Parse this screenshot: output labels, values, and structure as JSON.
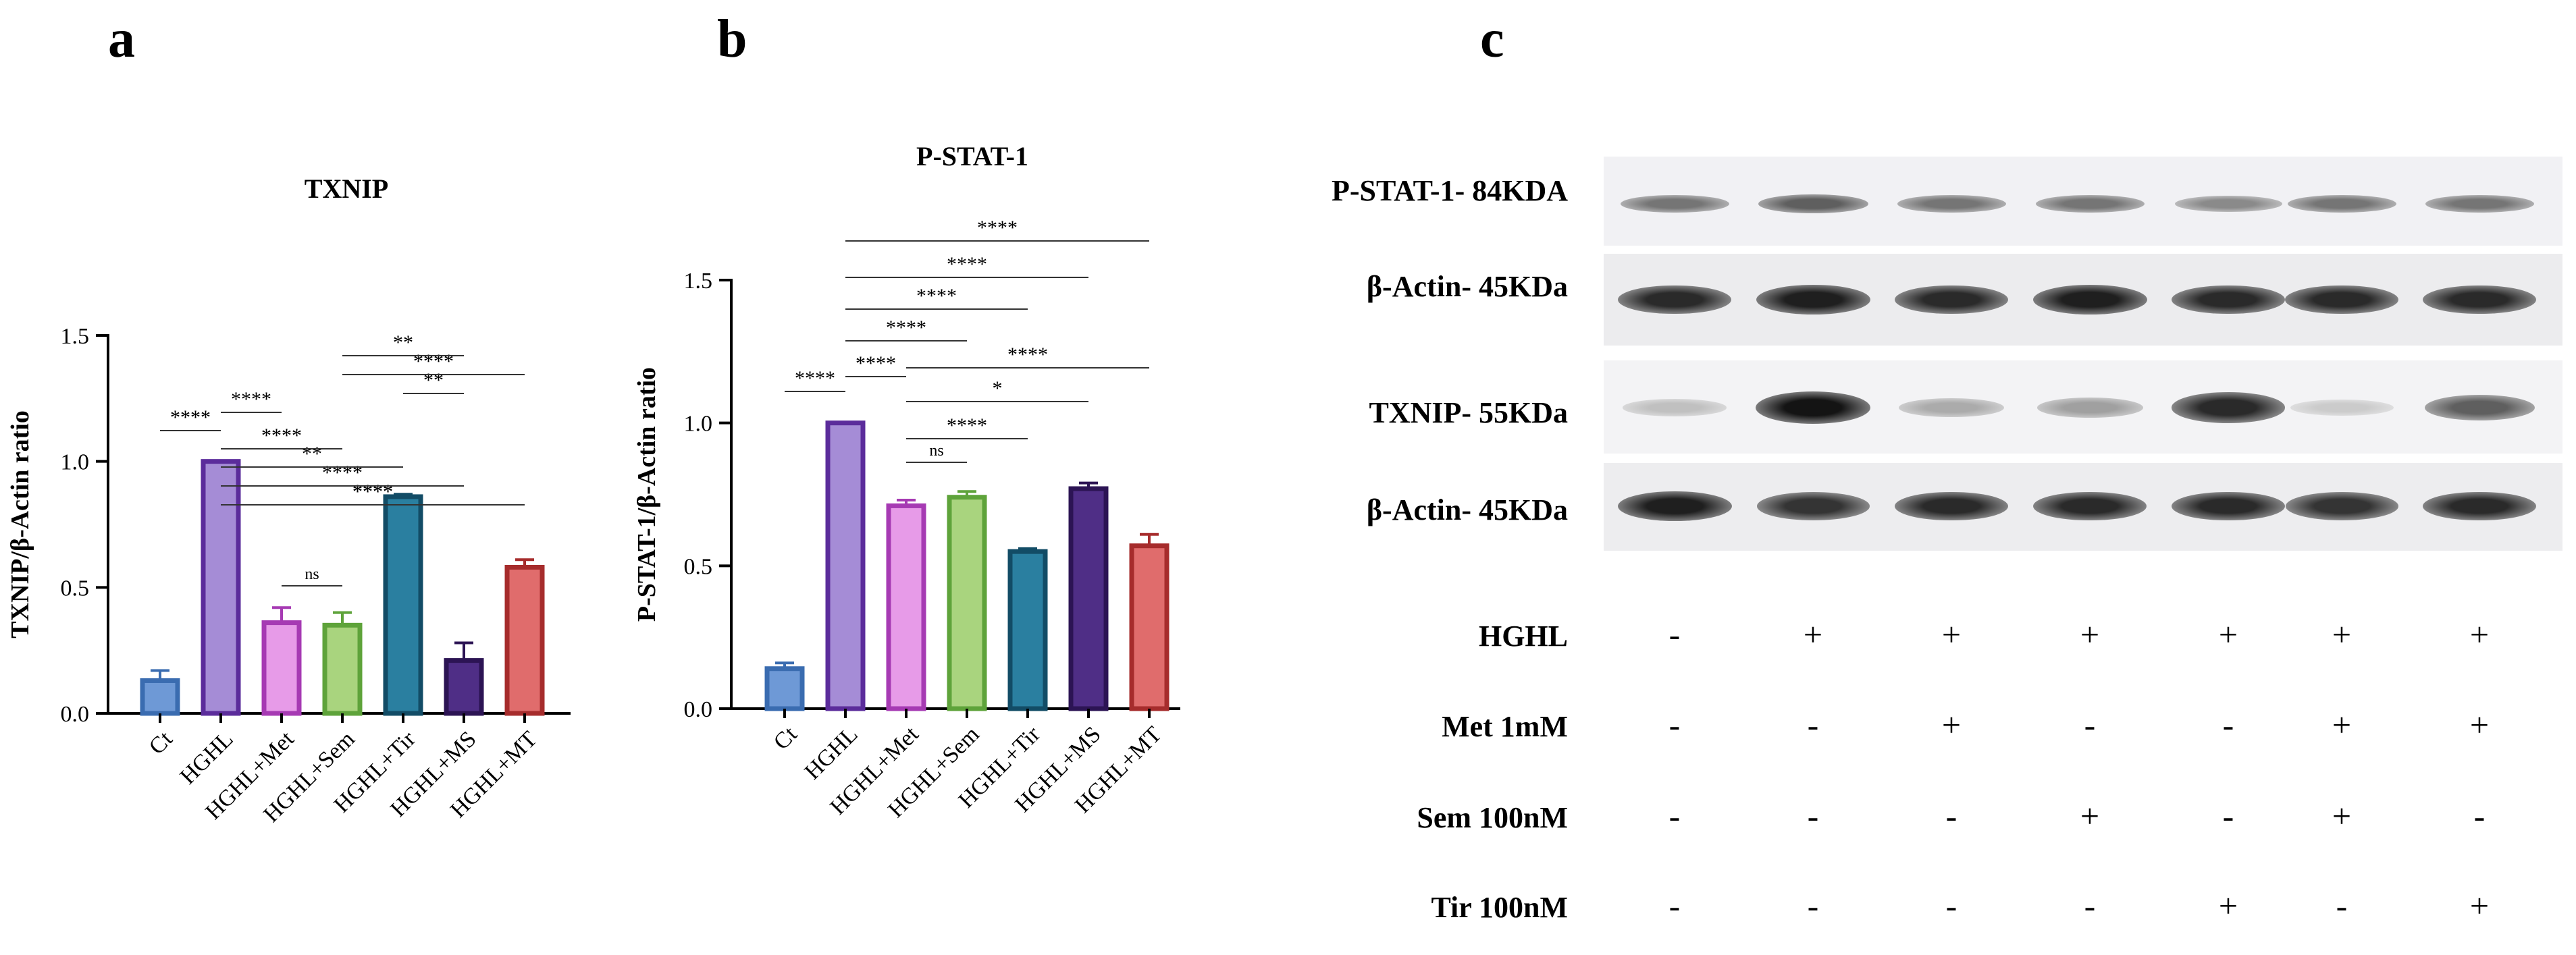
{
  "panels": {
    "a": {
      "letter": "a"
    },
    "b": {
      "letter": "b"
    },
    "c": {
      "letter": "c"
    }
  },
  "chart_data": [
    {
      "type": "bar",
      "title": "TXNIP",
      "ylabel": "TXNIP/β-Actin ratio",
      "xlabel": "",
      "ylim": [
        0,
        1.5
      ],
      "yticks": [
        "0.0",
        "0.5",
        "1.0",
        "1.5"
      ],
      "categories": [
        "Ct",
        "HGHL",
        "HGHL+Met",
        "HGHL+Sem",
        "HGHL+Tir",
        "HGHL+MS",
        "HGHL+MT"
      ],
      "values": [
        0.13,
        1.0,
        0.36,
        0.35,
        0.86,
        0.21,
        0.58
      ],
      "errors": [
        0.04,
        0.0,
        0.06,
        0.05,
        0.01,
        0.07,
        0.03
      ],
      "colors": [
        "#6e99d6",
        "#a58cd6",
        "#e79be8",
        "#a9d47e",
        "#2a7fa0",
        "#4f2e86",
        "#e06c6c"
      ],
      "edge_colors": [
        "#3a6cb0",
        "#5b2c9b",
        "#a63ab3",
        "#5ea33a",
        "#124c66",
        "#2c1454",
        "#a62c2c"
      ],
      "comparisons": [
        {
          "from": 0,
          "to": 1,
          "label": "****"
        },
        {
          "from": 2,
          "to": 3,
          "label": "ns"
        },
        {
          "from": 3,
          "to": 4,
          "label": "****"
        },
        {
          "from": 1,
          "to": 6,
          "label": "****"
        },
        {
          "from": 1,
          "to": 5,
          "label": "****"
        },
        {
          "from": 1,
          "to": 4,
          "label": "**"
        },
        {
          "from": 1,
          "to": 3,
          "label": "****"
        },
        {
          "from": 1,
          "to": 2,
          "label": "****"
        },
        {
          "from": 4,
          "to": 5,
          "label": "**"
        },
        {
          "from": 3,
          "to": 6,
          "label": "****"
        },
        {
          "from": 3,
          "to": 5,
          "label": "**"
        }
      ]
    },
    {
      "type": "bar",
      "title": "P-STAT-1",
      "ylabel": "P-STAT-1/β-Actin ratio",
      "xlabel": "",
      "ylim": [
        0,
        1.5
      ],
      "yticks": [
        "0.0",
        "0.5",
        "1.0",
        "1.5"
      ],
      "categories": [
        "Ct",
        "HGHL",
        "HGHL+Met",
        "HGHL+Sem",
        "HGHL+Tir",
        "HGHL+MS",
        "HGHL+MT"
      ],
      "values": [
        0.14,
        1.0,
        0.71,
        0.74,
        0.55,
        0.77,
        0.57
      ],
      "errors": [
        0.02,
        0.0,
        0.02,
        0.02,
        0.01,
        0.02,
        0.04
      ],
      "colors": [
        "#6e99d6",
        "#a58cd6",
        "#e79be8",
        "#a9d47e",
        "#2a7fa0",
        "#4f2e86",
        "#e06c6c"
      ],
      "edge_colors": [
        "#3a6cb0",
        "#5b2c9b",
        "#a63ab3",
        "#5ea33a",
        "#124c66",
        "#2c1454",
        "#a62c2c"
      ],
      "comparisons": [
        {
          "from": 0,
          "to": 1,
          "label": "****"
        },
        {
          "from": 2,
          "to": 3,
          "label": "ns"
        },
        {
          "from": 2,
          "to": 4,
          "label": "****"
        },
        {
          "from": 2,
          "to": 5,
          "label": "*"
        },
        {
          "from": 2,
          "to": 6,
          "label": "****"
        },
        {
          "from": 1,
          "to": 2,
          "label": "****"
        },
        {
          "from": 1,
          "to": 3,
          "label": "****"
        },
        {
          "from": 1,
          "to": 4,
          "label": "****"
        },
        {
          "from": 1,
          "to": 5,
          "label": "****"
        },
        {
          "from": 1,
          "to": 6,
          "label": "****"
        }
      ]
    }
  ],
  "blot": {
    "rows": [
      {
        "label": "P-STAT-1- 84KDA",
        "intensities": [
          0.55,
          0.65,
          0.55,
          0.55,
          0.45,
          0.55,
          0.55
        ]
      },
      {
        "label": "β-Actin- 45KDa",
        "intensities": [
          0.9,
          0.95,
          0.9,
          0.95,
          0.9,
          0.9,
          0.9
        ]
      },
      {
        "label": "TXNIP- 55KDa",
        "intensities": [
          0.2,
          1.0,
          0.3,
          0.35,
          0.9,
          0.15,
          0.65
        ]
      },
      {
        "label": "β-Actin- 45KDa",
        "intensities": [
          0.95,
          0.85,
          0.9,
          0.9,
          0.9,
          0.85,
          0.9
        ]
      }
    ]
  },
  "conditions": [
    {
      "label": "HGHL",
      "values": [
        "-",
        "+",
        "+",
        "+",
        "+",
        "+",
        "+"
      ]
    },
    {
      "label": "Met 1mM",
      "values": [
        "-",
        "-",
        "+",
        "-",
        "-",
        "+",
        "+"
      ]
    },
    {
      "label": "Sem 100nM",
      "values": [
        "-",
        "-",
        "-",
        "+",
        "-",
        "+",
        "-"
      ]
    },
    {
      "label": "Tir 100nM",
      "values": [
        "-",
        "-",
        "-",
        "-",
        "+",
        "-",
        "+"
      ]
    }
  ]
}
